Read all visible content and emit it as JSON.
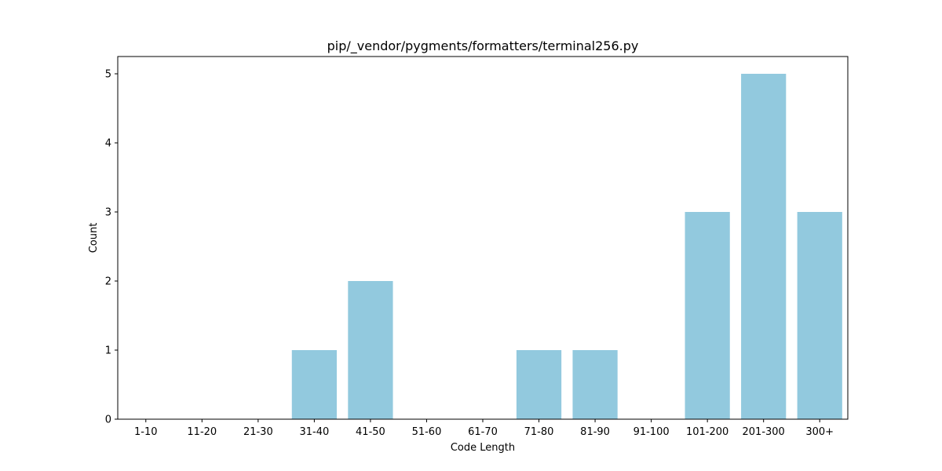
{
  "chart_data": {
    "type": "bar",
    "title": "pip/_vendor/pygments/formatters/terminal256.py",
    "xlabel": "Code Length",
    "ylabel": "Count",
    "categories": [
      "1-10",
      "11-20",
      "21-30",
      "31-40",
      "41-50",
      "51-60",
      "61-70",
      "71-80",
      "81-90",
      "91-100",
      "101-200",
      "201-300",
      "300+"
    ],
    "values": [
      0,
      0,
      0,
      1,
      2,
      0,
      0,
      1,
      1,
      0,
      3,
      5,
      3
    ],
    "ylim": [
      0,
      5.25
    ],
    "yticks": [
      0,
      1,
      2,
      3,
      4,
      5
    ],
    "grid": false,
    "bar_color": "#92c9de"
  }
}
